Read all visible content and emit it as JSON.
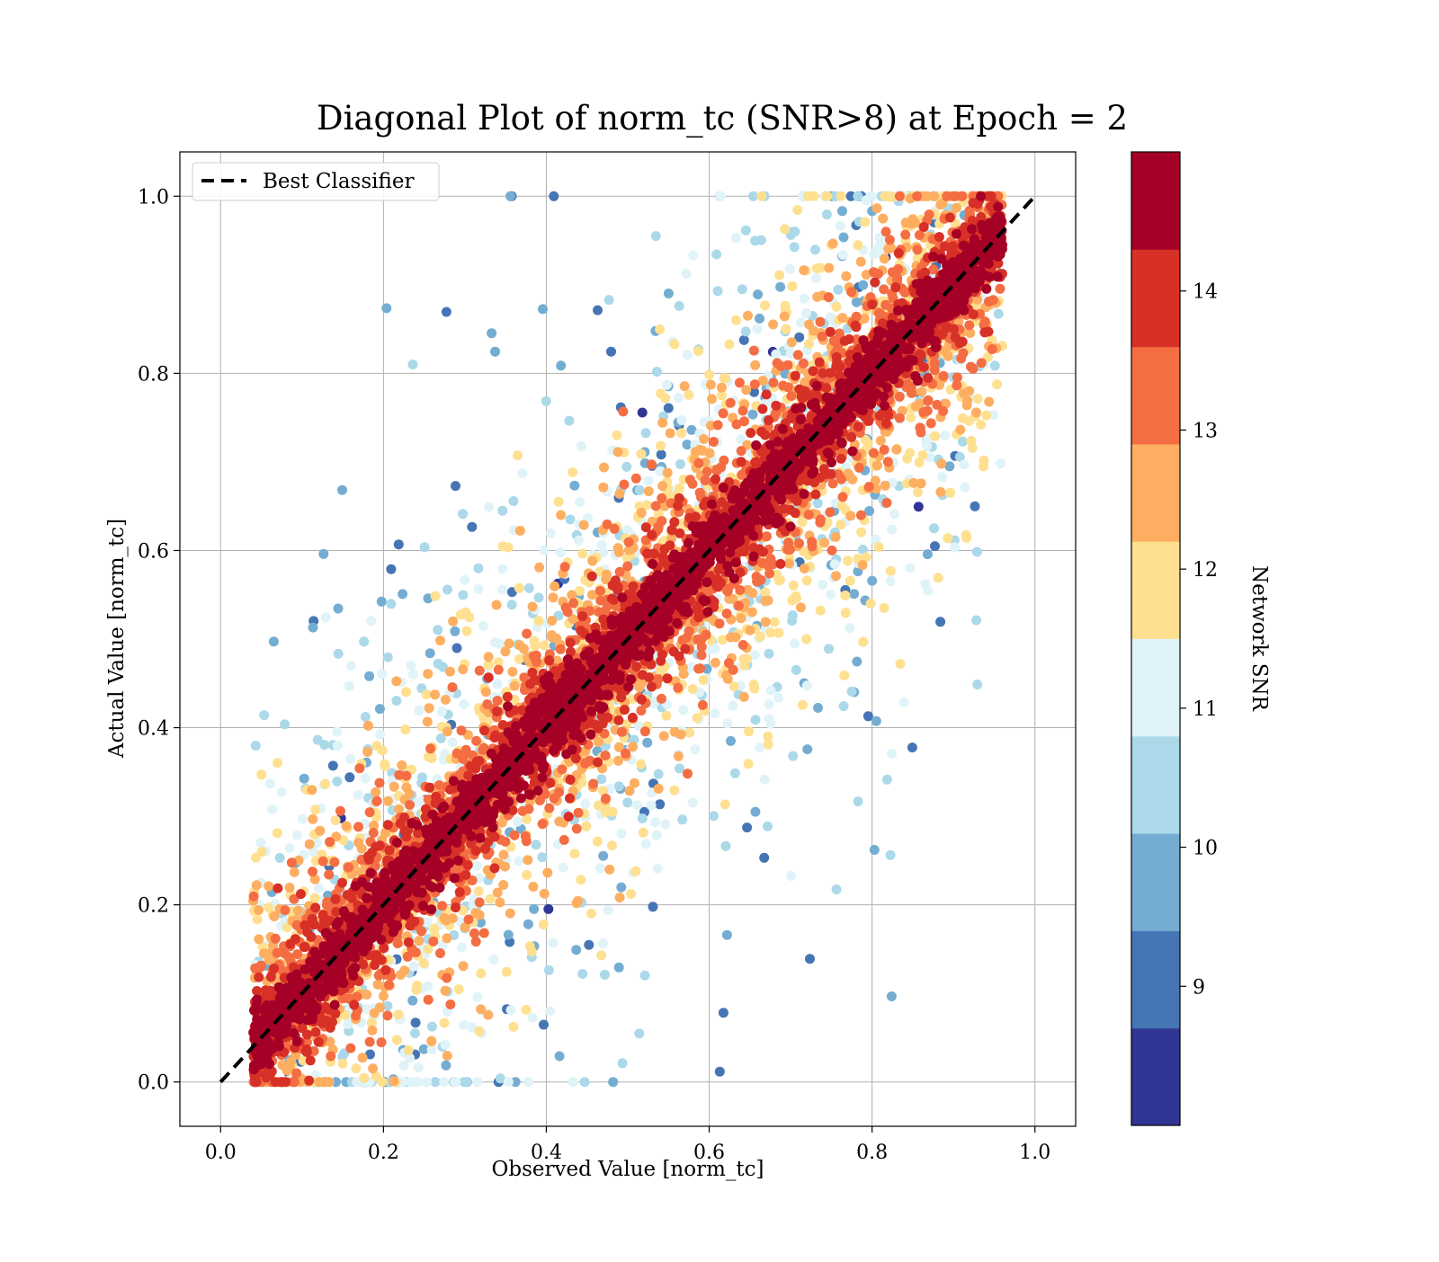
{
  "chart_data": {
    "type": "scatter",
    "title": "Diagonal Plot of norm_tc (SNR>8) at Epoch = 2",
    "xlabel": "Observed Value [norm_tc]",
    "ylabel": "Actual Value [norm_tc]",
    "xlim": [
      -0.05,
      1.05
    ],
    "ylim": [
      -0.05,
      1.05
    ],
    "x_ticks": [
      "0.0",
      "0.2",
      "0.4",
      "0.6",
      "0.8",
      "1.0"
    ],
    "y_ticks": [
      "0.0",
      "0.2",
      "0.4",
      "0.6",
      "0.8",
      "1.0"
    ],
    "grid": true,
    "legend": {
      "position": "top-left",
      "entries": [
        "Best Classifier"
      ]
    },
    "reference_line": {
      "name": "Best Classifier",
      "x": [
        0,
        1
      ],
      "y": [
        0,
        1
      ],
      "style": "dashed",
      "color": "#000000"
    },
    "colorbar": {
      "label": "Network SNR",
      "range": [
        8,
        15
      ],
      "ticks": [
        "9",
        "10",
        "11",
        "12",
        "13",
        "14"
      ],
      "levels": [
        {
          "min": 8.0,
          "max": 8.7,
          "color": "#313695"
        },
        {
          "min": 8.7,
          "max": 9.4,
          "color": "#4575b4"
        },
        {
          "min": 9.4,
          "max": 10.1,
          "color": "#74add1"
        },
        {
          "min": 10.1,
          "max": 10.8,
          "color": "#abd9e9"
        },
        {
          "min": 10.8,
          "max": 11.5,
          "color": "#e0f3f8"
        },
        {
          "min": 11.5,
          "max": 12.2,
          "color": "#fee090"
        },
        {
          "min": 12.2,
          "max": 12.9,
          "color": "#fdae61"
        },
        {
          "min": 12.9,
          "max": 13.6,
          "color": "#f46d43"
        },
        {
          "min": 13.6,
          "max": 14.3,
          "color": "#d73027"
        },
        {
          "min": 14.3,
          "max": 15.0,
          "color": "#a50026"
        }
      ]
    },
    "scatter_spread": {
      "note": "points cluster around y = x; high-SNR (dark red) points lie close to the diagonal, low-SNR (blue) points spread farther away",
      "x_range": [
        0.04,
        0.96
      ],
      "y_range": [
        0.0,
        1.0
      ]
    }
  }
}
